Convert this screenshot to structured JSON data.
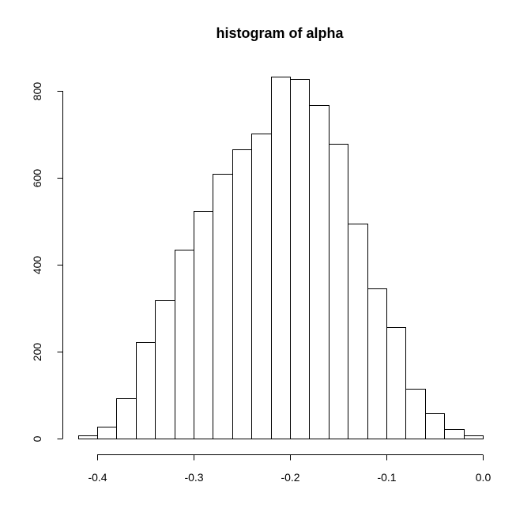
{
  "chart_data": {
    "type": "bar",
    "title": "histogram of alpha",
    "xlabel": "",
    "ylabel": "",
    "bin_edges": [
      -0.42,
      -0.4,
      -0.38,
      -0.36,
      -0.34,
      -0.32,
      -0.3,
      -0.28,
      -0.26,
      -0.24,
      -0.22,
      -0.2,
      -0.18,
      -0.16,
      -0.14,
      -0.12,
      -0.1,
      -0.08,
      -0.06,
      -0.04,
      -0.02,
      0.0
    ],
    "counts": [
      8,
      28,
      92,
      222,
      319,
      434,
      524,
      609,
      665,
      701,
      833,
      827,
      768,
      679,
      494,
      345,
      256,
      114,
      58,
      22,
      8
    ],
    "xlim": [
      -0.42,
      0.0
    ],
    "ylim": [
      0,
      800
    ],
    "x_ticks": [
      -0.4,
      -0.3,
      -0.2,
      -0.1,
      0.0
    ],
    "x_tick_labels": [
      "-0.4",
      "-0.3",
      "-0.2",
      "-0.1",
      "0.0"
    ],
    "y_ticks": [
      0,
      200,
      400,
      600,
      800
    ],
    "y_tick_labels": [
      "0",
      "200",
      "400",
      "600",
      "800"
    ],
    "grid": false,
    "colors": {
      "bar_fill": "#ffffff",
      "bar_stroke": "#000000"
    }
  }
}
